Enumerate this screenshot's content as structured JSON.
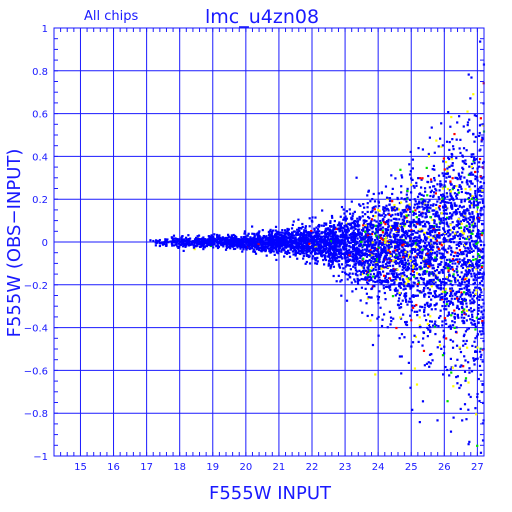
{
  "chart_data": {
    "type": "scatter",
    "title": "lmc_u4zn08",
    "subtitle": "All chips",
    "xlabel": "F555W INPUT",
    "ylabel": "F555W (OBS−INPUT)",
    "xlim": [
      14.2,
      27.2
    ],
    "ylim": [
      -1,
      1
    ],
    "x_ticks": [
      15,
      16,
      17,
      18,
      19,
      20,
      21,
      22,
      23,
      24,
      25,
      26,
      27
    ],
    "y_ticks": [
      -1,
      -0.8,
      -0.6,
      -0.4,
      -0.2,
      0,
      0.2,
      0.4,
      0.6,
      0.8,
      1
    ],
    "y_tick_labels": [
      "−1",
      "−0.8",
      "−0.6",
      "−0.4",
      "−0.2",
      "0",
      "0.2",
      "0.4",
      "0.6",
      "0.8",
      "1"
    ],
    "grid": true,
    "series": [
      {
        "color": "#0000ff",
        "weight": 0.86
      },
      {
        "color": "#ffff00",
        "weight": 0.06
      },
      {
        "color": "#00dd00",
        "weight": 0.04
      },
      {
        "color": "#ff0000",
        "weight": 0.04
      }
    ],
    "colors": {
      "axis": "#1a1aff",
      "grid": "#1a1aff"
    }
  }
}
